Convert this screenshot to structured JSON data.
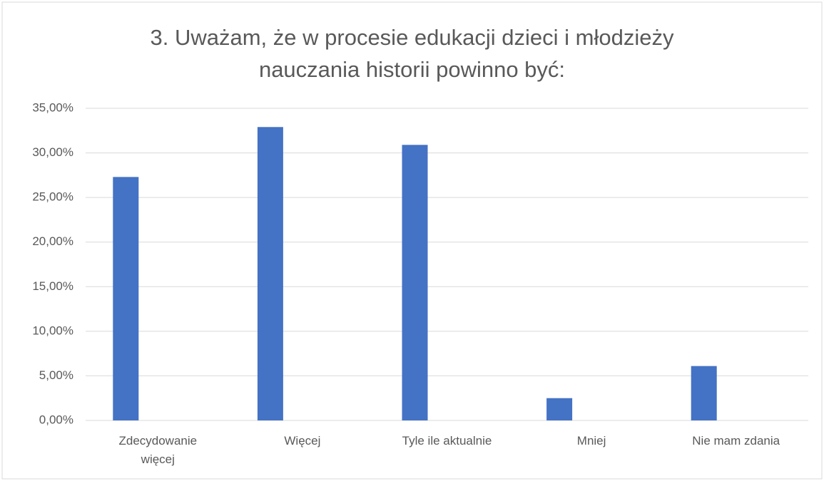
{
  "chart_data": {
    "type": "bar",
    "title": "3. Uważam, że w procesie edukacji dzieci i młodzieży\nnauczania historii powinno być:",
    "categories": [
      "Zdecydowanie\nwięcej",
      "Więcej",
      "Tyle ile aktualnie",
      "Mniej",
      "Nie mam zdania"
    ],
    "values": [
      27.3,
      32.9,
      30.9,
      2.5,
      6.1
    ],
    "color": "#4472c4",
    "ylim": [
      0,
      35
    ],
    "yticks": [
      {
        "value": 0,
        "label": "0,00%"
      },
      {
        "value": 5,
        "label": "5,00%"
      },
      {
        "value": 10,
        "label": "10,00%"
      },
      {
        "value": 15,
        "label": "15,00%"
      },
      {
        "value": 20,
        "label": "20,00%"
      },
      {
        "value": 25,
        "label": "25,00%"
      },
      {
        "value": 30,
        "label": "30,00%"
      },
      {
        "value": 35,
        "label": "35,00%"
      }
    ],
    "grid": true
  }
}
